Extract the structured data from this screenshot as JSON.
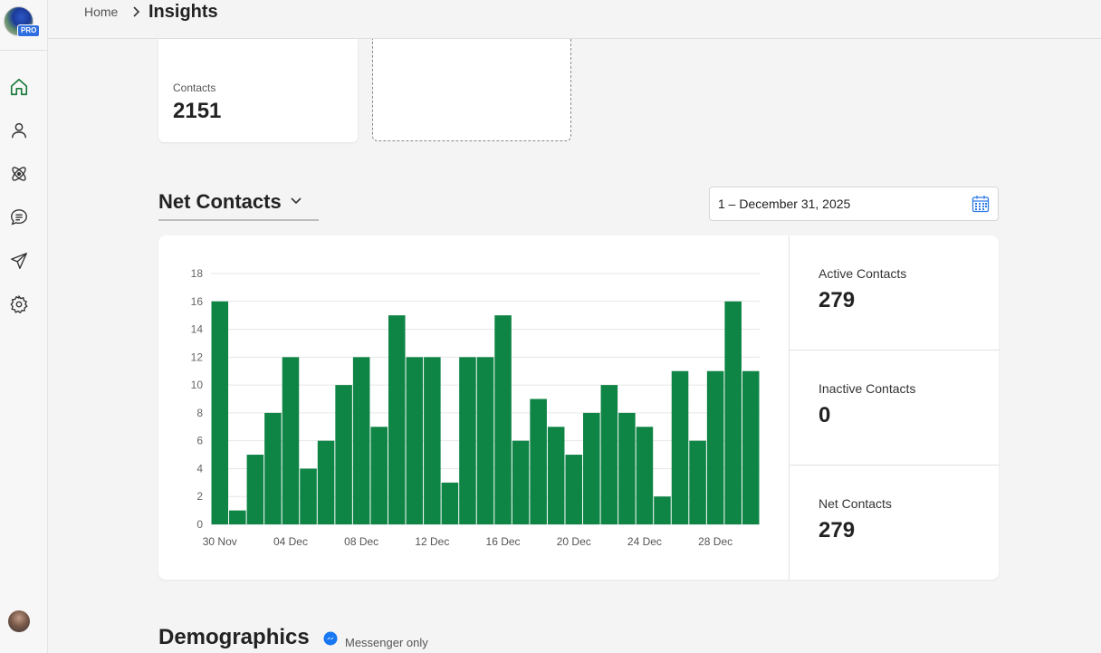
{
  "sidebar": {
    "brand_badge": "PRO",
    "nav": [
      {
        "icon": "home-icon",
        "active": true
      },
      {
        "icon": "user-icon"
      },
      {
        "icon": "atom-icon"
      },
      {
        "icon": "chat-icon"
      },
      {
        "icon": "send-icon"
      },
      {
        "icon": "gear-icon"
      }
    ],
    "active_color": "#1a7a3c"
  },
  "breadcrumb": {
    "home": "Home",
    "current": "Insights"
  },
  "summary": {
    "contacts_label": "Contacts",
    "contacts_value": "2151"
  },
  "net_contacts": {
    "title": "Net Contacts",
    "date_range": "1 – December 31, 2025",
    "stats": [
      {
        "label": "Active Contacts",
        "value": "279"
      },
      {
        "label": "Inactive Contacts",
        "value": "0"
      },
      {
        "label": "Net Contacts",
        "value": "279"
      }
    ]
  },
  "chart_data": {
    "type": "bar",
    "bar_color": "#0e8445",
    "categories": [
      "30 Nov",
      "01 Dec",
      "02 Dec",
      "03 Dec",
      "04 Dec",
      "05 Dec",
      "06 Dec",
      "07 Dec",
      "08 Dec",
      "09 Dec",
      "10 Dec",
      "11 Dec",
      "12 Dec",
      "13 Dec",
      "14 Dec",
      "15 Dec",
      "16 Dec",
      "17 Dec",
      "18 Dec",
      "19 Dec",
      "20 Dec",
      "21 Dec",
      "22 Dec",
      "23 Dec",
      "24 Dec",
      "25 Dec",
      "26 Dec",
      "27 Dec",
      "28 Dec",
      "29 Dec",
      "30 Dec"
    ],
    "x_tick_labels": [
      "30 Nov",
      "04 Dec",
      "08 Dec",
      "12 Dec",
      "16 Dec",
      "20 Dec",
      "24 Dec",
      "28 Dec"
    ],
    "values": [
      16,
      1,
      5,
      8,
      12,
      4,
      6,
      10,
      12,
      7,
      15,
      12,
      12,
      3,
      12,
      12,
      15,
      6,
      9,
      7,
      5,
      8,
      10,
      8,
      7,
      2,
      11,
      6,
      11,
      16,
      11
    ],
    "ylim": [
      0,
      18
    ],
    "y_ticks": [
      0,
      2,
      4,
      6,
      8,
      10,
      12,
      14,
      16,
      18
    ],
    "grid": true,
    "legend": "none"
  },
  "demographics": {
    "title": "Demographics",
    "note": "Messenger only"
  }
}
